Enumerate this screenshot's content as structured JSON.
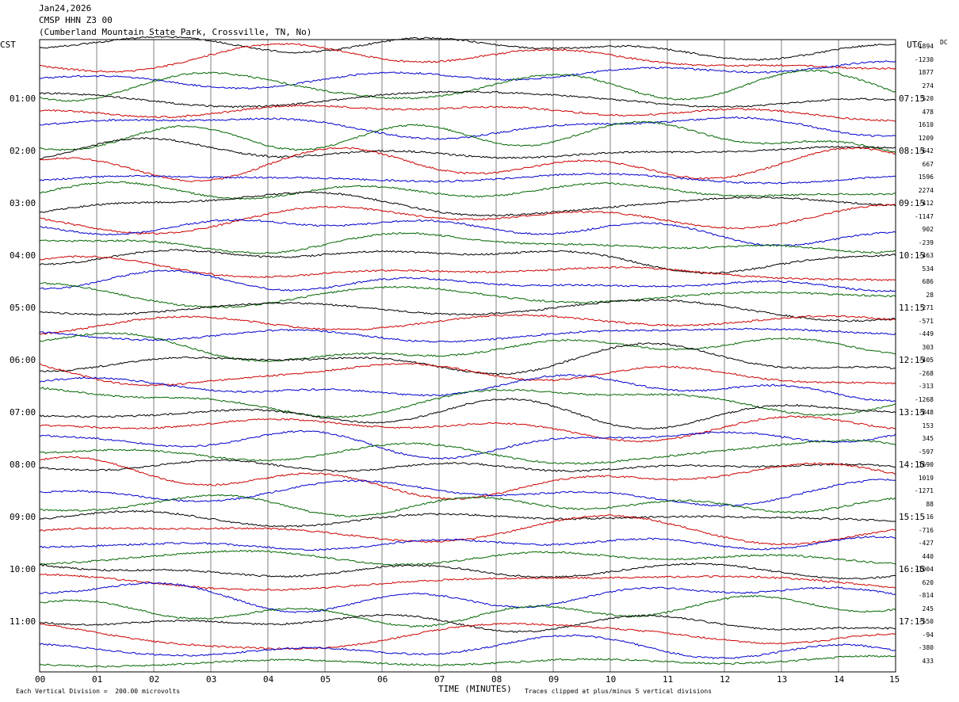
{
  "header": {
    "date": "Jan24,2026",
    "station": "CMSP HHN Z3 00",
    "location": "(Cumberland Mountain State Park, Crossville, TN, No)"
  },
  "labels": {
    "left_tz": "CST",
    "right_tz": "UTC",
    "dc": "DC"
  },
  "footer": {
    "scale_note": "Each Vertical Division =  200.00 microvolts",
    "xaxis_title": "TIME (MINUTES)",
    "clip_note": "Traces clipped at plus/minus 5 vertical divisions"
  },
  "colors": {
    "trace_cycle": [
      "#000000",
      "#cc0000",
      "#0000cc",
      "#006600"
    ],
    "gridline": "#808080"
  },
  "chart_data": {
    "type": "line",
    "chart_kind": "helicorder",
    "xlabel": "TIME (MINUTES)",
    "xlim": [
      0,
      15
    ],
    "x_ticks": [
      "00",
      "01",
      "02",
      "03",
      "04",
      "05",
      "06",
      "07",
      "08",
      "09",
      "10",
      "11",
      "12",
      "13",
      "14",
      "15"
    ],
    "grid": "vertical lines at every minute",
    "rows": 48,
    "minutes_per_row": 15,
    "left_hour_labels": [
      "01:00",
      "02:00",
      "03:00",
      "04:00",
      "05:00",
      "06:00",
      "07:00",
      "08:00",
      "09:00",
      "10:00",
      "11:00"
    ],
    "right_hour_labels": [
      "07:15",
      "08:15",
      "09:15",
      "10:15",
      "11:15",
      "12:15",
      "13:15",
      "14:15",
      "15:15",
      "16:15",
      "17:15"
    ],
    "dc_offsets": [
      "-1894",
      "-1230",
      "1877",
      "274",
      "520",
      "478",
      "1610",
      "1209",
      "-642",
      "667",
      "1596",
      "2274",
      "-412",
      "-1147",
      "902",
      "-239",
      "-463",
      "534",
      "686",
      "28",
      "271",
      "-571",
      "-449",
      "303",
      "-405",
      "-268",
      "-313",
      "-1268",
      "-848",
      "153",
      "345",
      "-597",
      "1690",
      "1019",
      "-1271",
      "88",
      "-16",
      "-716",
      "-427",
      "440",
      "-1004",
      "620",
      "-814",
      "245",
      "-550",
      "-94",
      "-380",
      "433"
    ]
  }
}
